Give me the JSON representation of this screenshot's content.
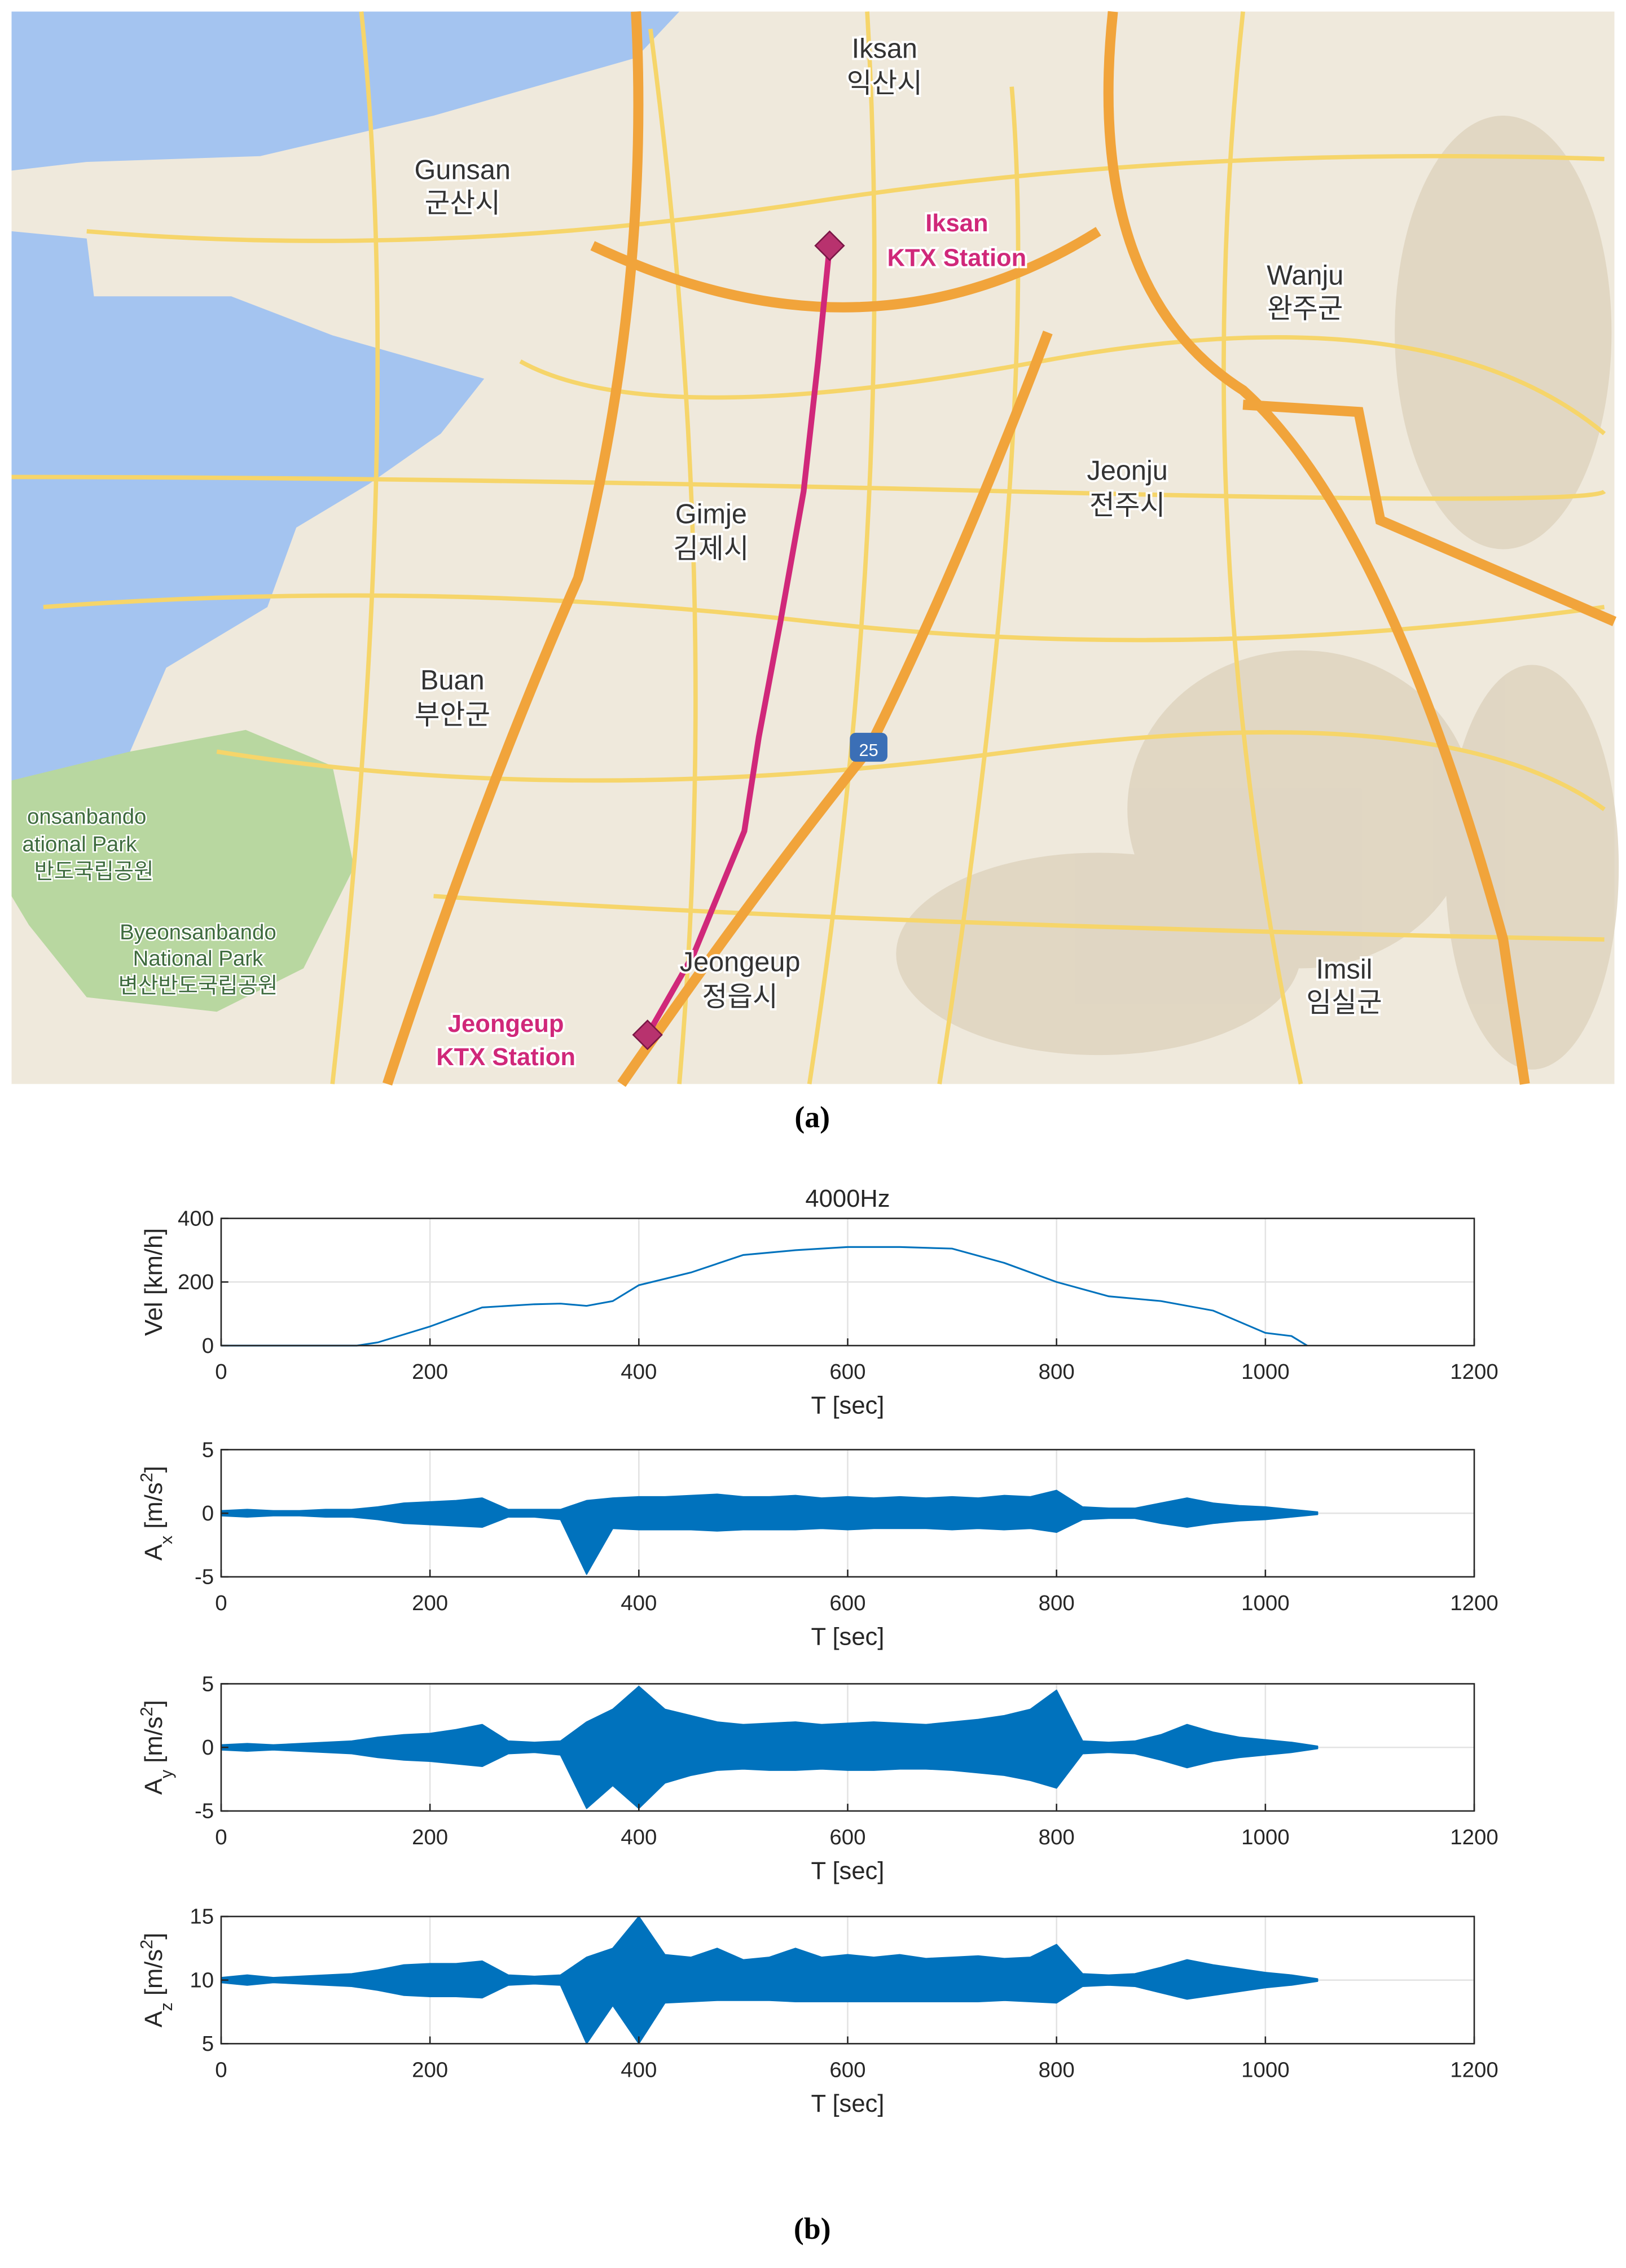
{
  "map": {
    "labels": [
      "Iksan",
      "익산시",
      "Gunsan",
      "군산시",
      "Iksan",
      "KTX Station",
      "Wanju",
      "완주군",
      "Jeonju",
      "전주시",
      "Gimje",
      "김제시",
      "Buan",
      "부안군",
      "25",
      "onsanbando",
      "ational Park",
      "반도국립공원",
      "Byeonsanbando",
      "National Park",
      "변산반도국립공원",
      "Jeongeup",
      "정읍시",
      "Imsil",
      "임실군",
      "Jeongeup",
      "KTX Station"
    ]
  },
  "captions": {
    "a": "(a)",
    "b": "(b)"
  },
  "chart_data": [
    {
      "type": "line",
      "title": "4000Hz",
      "x_label": "T [sec]",
      "y_label": "Vel [km/h]",
      "color": "#0072bd",
      "grid": true,
      "x": [
        0,
        50,
        100,
        130,
        150,
        200,
        250,
        275,
        300,
        325,
        350,
        375,
        400,
        450,
        500,
        550,
        600,
        650,
        700,
        750,
        800,
        850,
        900,
        950,
        1000,
        1025,
        1040
      ],
      "values": [
        0,
        0,
        0,
        0,
        10,
        60,
        120,
        125,
        130,
        132,
        125,
        140,
        190,
        230,
        285,
        300,
        310,
        310,
        305,
        260,
        200,
        155,
        140,
        110,
        40,
        30,
        0
      ],
      "xlim": [
        0,
        1200
      ],
      "xticks": [
        0,
        200,
        400,
        600,
        800,
        1000,
        1200
      ],
      "ylim": [
        0,
        400
      ],
      "yticks": [
        0,
        200,
        400
      ]
    },
    {
      "type": "area",
      "x_label": "T [sec]",
      "y_label": [
        "A",
        "x",
        " [m/s",
        "2",
        "]"
      ],
      "grid": true,
      "x": [
        0,
        25,
        50,
        75,
        100,
        125,
        150,
        175,
        200,
        225,
        250,
        275,
        300,
        325,
        350,
        375,
        400,
        425,
        450,
        475,
        500,
        525,
        550,
        575,
        600,
        625,
        650,
        675,
        700,
        725,
        750,
        775,
        800,
        825,
        850,
        875,
        900,
        925,
        950,
        975,
        1000,
        1025,
        1050
      ],
      "series": [
        {
          "color": "#0072bd",
          "values": [
            0.2,
            0.3,
            0.2,
            0.2,
            0.3,
            0.3,
            0.5,
            0.8,
            0.9,
            1.0,
            1.2,
            0.3,
            0.3,
            0.3,
            1.0,
            1.2,
            1.3,
            1.3,
            1.4,
            1.5,
            1.3,
            1.3,
            1.4,
            1.2,
            1.3,
            1.2,
            1.3,
            1.2,
            1.3,
            1.2,
            1.4,
            1.3,
            1.8,
            0.5,
            0.4,
            0.4,
            0.8,
            1.2,
            0.8,
            0.6,
            0.5,
            0.3,
            0.1
          ]
        },
        {
          "color": "#0072bd",
          "values": [
            -0.2,
            -0.3,
            -0.2,
            -0.2,
            -0.3,
            -0.3,
            -0.5,
            -0.8,
            -0.9,
            -1.0,
            -1.1,
            -0.3,
            -0.3,
            -0.5,
            -4.8,
            -1.2,
            -1.3,
            -1.3,
            -1.3,
            -1.4,
            -1.3,
            -1.3,
            -1.3,
            -1.2,
            -1.3,
            -1.2,
            -1.2,
            -1.2,
            -1.3,
            -1.2,
            -1.3,
            -1.2,
            -1.5,
            -0.5,
            -0.4,
            -0.4,
            -0.8,
            -1.1,
            -0.8,
            -0.6,
            -0.5,
            -0.3,
            -0.1
          ]
        }
      ],
      "xlim": [
        0,
        1200
      ],
      "xticks": [
        0,
        200,
        400,
        600,
        800,
        1000,
        1200
      ],
      "ylim": [
        -5,
        5
      ],
      "yticks": [
        -5,
        0,
        5
      ]
    },
    {
      "type": "area",
      "x_label": "T [sec]",
      "y_label": [
        "A",
        "y",
        " [m/s",
        "2",
        "]"
      ],
      "grid": true,
      "x": [
        0,
        25,
        50,
        75,
        100,
        125,
        150,
        175,
        200,
        225,
        250,
        275,
        300,
        325,
        350,
        375,
        400,
        425,
        450,
        475,
        500,
        525,
        550,
        575,
        600,
        625,
        650,
        675,
        700,
        725,
        750,
        775,
        800,
        825,
        850,
        875,
        900,
        925,
        950,
        975,
        1000,
        1025,
        1050
      ],
      "series": [
        {
          "color": "#0072bd",
          "values": [
            0.2,
            0.3,
            0.2,
            0.3,
            0.4,
            0.5,
            0.8,
            1.0,
            1.1,
            1.4,
            1.8,
            0.5,
            0.4,
            0.5,
            2.0,
            3.0,
            4.8,
            3.0,
            2.5,
            2.0,
            1.8,
            1.9,
            2.0,
            1.8,
            1.9,
            2.0,
            1.9,
            1.8,
            2.0,
            2.2,
            2.5,
            3.0,
            4.5,
            0.5,
            0.4,
            0.5,
            1.0,
            1.8,
            1.2,
            0.8,
            0.6,
            0.4,
            0.1
          ]
        },
        {
          "color": "#0072bd",
          "values": [
            -0.2,
            -0.3,
            -0.2,
            -0.3,
            -0.4,
            -0.5,
            -0.8,
            -1.0,
            -1.1,
            -1.3,
            -1.5,
            -0.5,
            -0.4,
            -0.6,
            -4.8,
            -3.0,
            -4.8,
            -2.8,
            -2.2,
            -1.8,
            -1.7,
            -1.8,
            -1.8,
            -1.7,
            -1.8,
            -1.8,
            -1.7,
            -1.7,
            -1.8,
            -2.0,
            -2.2,
            -2.6,
            -3.2,
            -0.5,
            -0.4,
            -0.5,
            -1.0,
            -1.6,
            -1.1,
            -0.8,
            -0.6,
            -0.4,
            -0.1
          ]
        }
      ],
      "xlim": [
        0,
        1200
      ],
      "xticks": [
        0,
        200,
        400,
        600,
        800,
        1000,
        1200
      ],
      "ylim": [
        -5,
        5
      ],
      "yticks": [
        -5,
        0,
        5
      ]
    },
    {
      "type": "area",
      "x_label": "T [sec]",
      "y_label": [
        "A",
        "z",
        " [m/s",
        "2",
        "]"
      ],
      "grid": true,
      "x": [
        0,
        25,
        50,
        75,
        100,
        125,
        150,
        175,
        200,
        225,
        250,
        275,
        300,
        325,
        350,
        375,
        400,
        425,
        450,
        475,
        500,
        525,
        550,
        575,
        600,
        625,
        650,
        675,
        700,
        725,
        750,
        775,
        800,
        825,
        850,
        875,
        900,
        925,
        950,
        975,
        1000,
        1025,
        1050
      ],
      "series": [
        {
          "color": "#0072bd",
          "values": [
            10.2,
            10.4,
            10.2,
            10.3,
            10.4,
            10.5,
            10.8,
            11.2,
            11.3,
            11.3,
            11.5,
            10.4,
            10.3,
            10.4,
            11.8,
            12.5,
            15,
            12.0,
            11.8,
            12.5,
            11.6,
            11.8,
            12.5,
            11.8,
            12.0,
            11.8,
            12.0,
            11.7,
            11.8,
            11.9,
            11.7,
            11.8,
            12.8,
            10.5,
            10.4,
            10.5,
            11.0,
            11.6,
            11.2,
            10.9,
            10.6,
            10.4,
            10.1
          ]
        },
        {
          "color": "#0072bd",
          "values": [
            9.8,
            9.6,
            9.8,
            9.7,
            9.6,
            9.5,
            9.2,
            8.8,
            8.7,
            8.7,
            8.6,
            9.6,
            9.7,
            9.6,
            5.0,
            8.0,
            5.0,
            8.2,
            8.3,
            8.4,
            8.4,
            8.4,
            8.3,
            8.3,
            8.3,
            8.3,
            8.3,
            8.3,
            8.3,
            8.3,
            8.4,
            8.3,
            8.2,
            9.5,
            9.6,
            9.5,
            9.0,
            8.5,
            8.8,
            9.1,
            9.4,
            9.6,
            9.9
          ]
        }
      ],
      "xlim": [
        0,
        1200
      ],
      "xticks": [
        0,
        200,
        400,
        600,
        800,
        1000,
        1200
      ],
      "ylim": [
        5,
        15
      ],
      "yticks": [
        5,
        10,
        15
      ]
    }
  ]
}
